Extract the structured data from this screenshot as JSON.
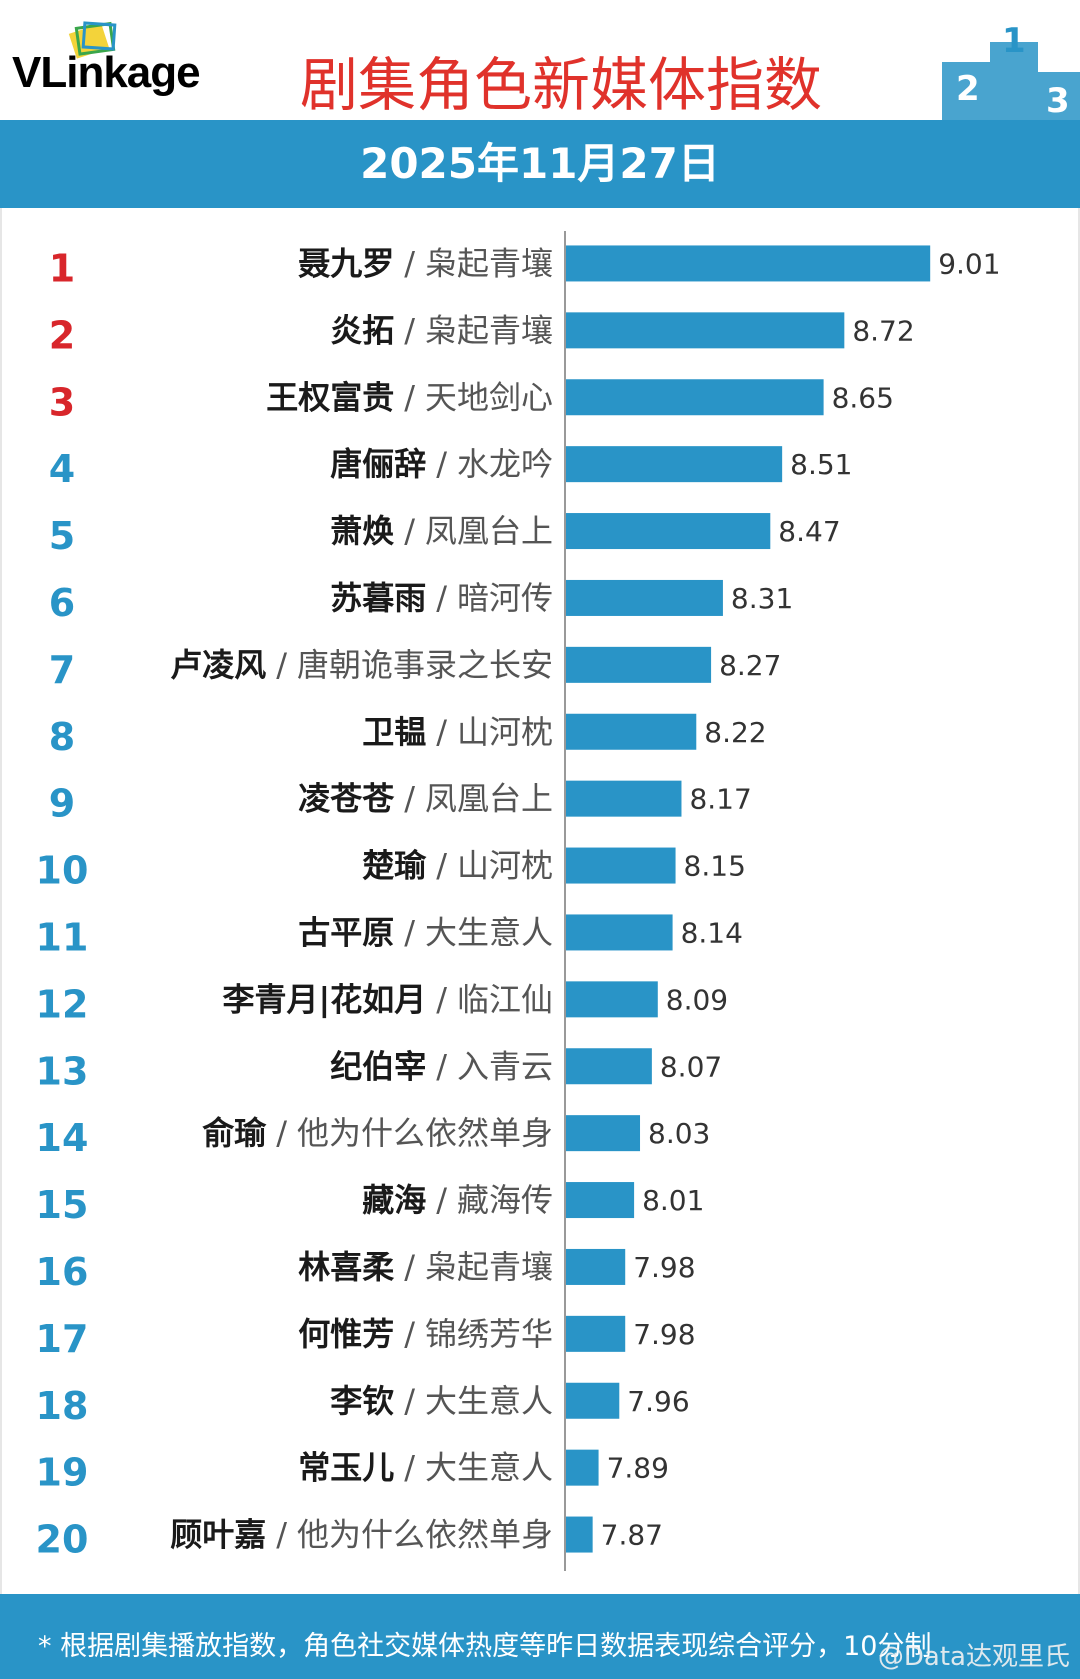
{
  "header": {
    "logo_text": "VLinkage",
    "title": "剧集角色新媒体指数",
    "date": "2025年11月27日",
    "podium_numbers": [
      "2",
      "1",
      "3"
    ]
  },
  "colors": {
    "bar": "#2994c7",
    "rank_top": "#d8262b",
    "rank_other": "#2994c7",
    "title": "#e0322b",
    "band": "#2994c7"
  },
  "chart_data": {
    "type": "bar",
    "orientation": "horizontal",
    "title": "剧集角色新媒体指数",
    "ranks": [
      "1",
      "2",
      "3",
      "4",
      "5",
      "6",
      "7",
      "8",
      "9",
      "10",
      "11",
      "12",
      "13",
      "14",
      "15",
      "16",
      "17",
      "18",
      "19",
      "20"
    ],
    "roles": [
      "聂九罗",
      "炎拓",
      "王权富贵",
      "唐俪辞",
      "萧焕",
      "苏暮雨",
      "卢凌风",
      "卫韫",
      "凌苍苍",
      "楚瑜",
      "古平原",
      "李青月|花如月",
      "纪伯宰",
      "俞瑜",
      "藏海",
      "林喜柔",
      "何惟芳",
      "李钦",
      "常玉儿",
      "顾叶嘉"
    ],
    "dramas": [
      "枭起青壤",
      "枭起青壤",
      "天地剑心",
      "水龙吟",
      "凤凰台上",
      "暗河传",
      "唐朝诡事录之长安",
      "山河枕",
      "凤凰台上",
      "山河枕",
      "大生意人",
      "临江仙",
      "入青云",
      "他为什么依然单身",
      "藏海传",
      "枭起青壤",
      "锦绣芳华",
      "大生意人",
      "大生意人",
      "他为什么依然单身"
    ],
    "values": [
      9.01,
      8.72,
      8.65,
      8.51,
      8.47,
      8.31,
      8.27,
      8.22,
      8.17,
      8.15,
      8.14,
      8.09,
      8.07,
      8.03,
      8.01,
      7.98,
      7.98,
      7.96,
      7.89,
      7.87
    ],
    "value_labels": [
      "9.01",
      "8.72",
      "8.65",
      "8.51",
      "8.47",
      "8.31",
      "8.27",
      "8.22",
      "8.17",
      "8.15",
      "8.14",
      "8.09",
      "8.07",
      "8.03",
      "8.01",
      "7.98",
      "7.98",
      "7.96",
      "7.89",
      "7.87"
    ],
    "separator": "/",
    "xlim": [
      7.78,
      9.06
    ]
  },
  "footer": {
    "note": "* 根据剧集播放指数，角色社交媒体热度等昨日数据表现综合评分，10分制",
    "watermark": "@Data达观里氏"
  }
}
